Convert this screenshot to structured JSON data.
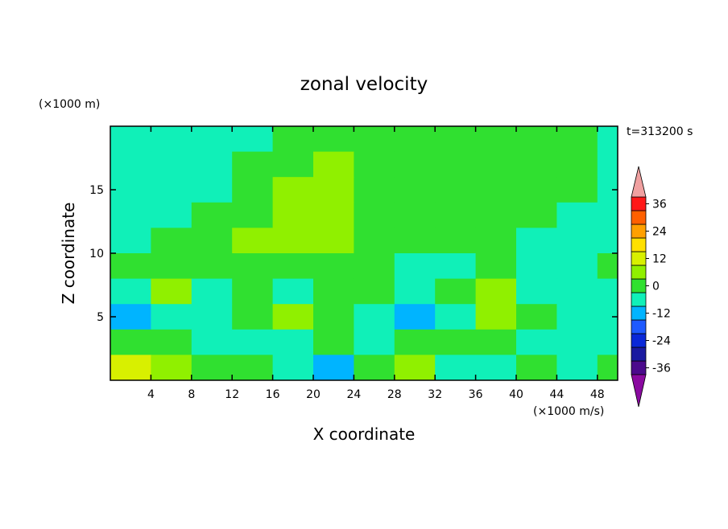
{
  "chart_data": {
    "type": "contour",
    "title": "zonal velocity",
    "xlabel": "X coordinate",
    "ylabel": "Z coordinate",
    "y_units": "(×1000 m)",
    "value_units": "(×1000 m/s)",
    "time_label": "t=313200 s",
    "xlim": [
      0,
      50
    ],
    "ylim": [
      0,
      20
    ],
    "xticks": [
      4,
      8,
      12,
      16,
      20,
      24,
      28,
      32,
      36,
      40,
      44,
      48
    ],
    "yticks": [
      5,
      10,
      15
    ],
    "x": [
      2,
      6,
      10,
      14,
      18,
      22,
      26,
      30,
      34,
      38,
      42,
      46,
      50
    ],
    "z": [
      19,
      17,
      15,
      13,
      11,
      9,
      7,
      5,
      3,
      1
    ],
    "values": [
      [
        -6,
        -6,
        -6,
        -6,
        0,
        0,
        0,
        0,
        0,
        0,
        0,
        0,
        -6
      ],
      [
        -6,
        -6,
        -6,
        0,
        0,
        6,
        0,
        0,
        0,
        0,
        0,
        0,
        -6
      ],
      [
        -6,
        -6,
        -6,
        0,
        6,
        6,
        0,
        0,
        0,
        0,
        0,
        0,
        -6
      ],
      [
        -6,
        -6,
        0,
        0,
        6,
        6,
        0,
        0,
        0,
        0,
        0,
        -6,
        -6
      ],
      [
        -6,
        0,
        0,
        6,
        6,
        6,
        0,
        0,
        0,
        0,
        -6,
        -6,
        -6
      ],
      [
        0,
        0,
        0,
        0,
        0,
        0,
        0,
        -6,
        -6,
        0,
        -6,
        -6,
        0
      ],
      [
        -6,
        6,
        -6,
        0,
        -6,
        0,
        0,
        -6,
        0,
        6,
        -6,
        -6,
        -6
      ],
      [
        -12,
        -6,
        -6,
        0,
        6,
        0,
        -6,
        -12,
        -6,
        6,
        0,
        -6,
        -6
      ],
      [
        0,
        0,
        -6,
        -6,
        -6,
        0,
        -6,
        0,
        0,
        0,
        -6,
        -6,
        -6
      ],
      [
        12,
        6,
        0,
        0,
        -6,
        -12,
        0,
        6,
        -6,
        -6,
        0,
        -6,
        0
      ]
    ],
    "levels": [
      -39,
      -33,
      -27,
      -21,
      -15,
      -9,
      -3,
      3,
      9,
      15,
      21,
      27,
      33,
      39
    ],
    "colors": [
      "#4b0a8c",
      "#1a1aa0",
      "#0a28d8",
      "#1e5aff",
      "#00b4ff",
      "#10f0b8",
      "#30e030",
      "#90f000",
      "#d8f000",
      "#ffe000",
      "#ffa000",
      "#ff6000",
      "#ff1818"
    ],
    "under_color": "#8a0aa0",
    "over_color": "#f0a0a0",
    "colorbar_ticks": [
      36,
      24,
      12,
      0,
      -12,
      -24,
      -36
    ]
  }
}
